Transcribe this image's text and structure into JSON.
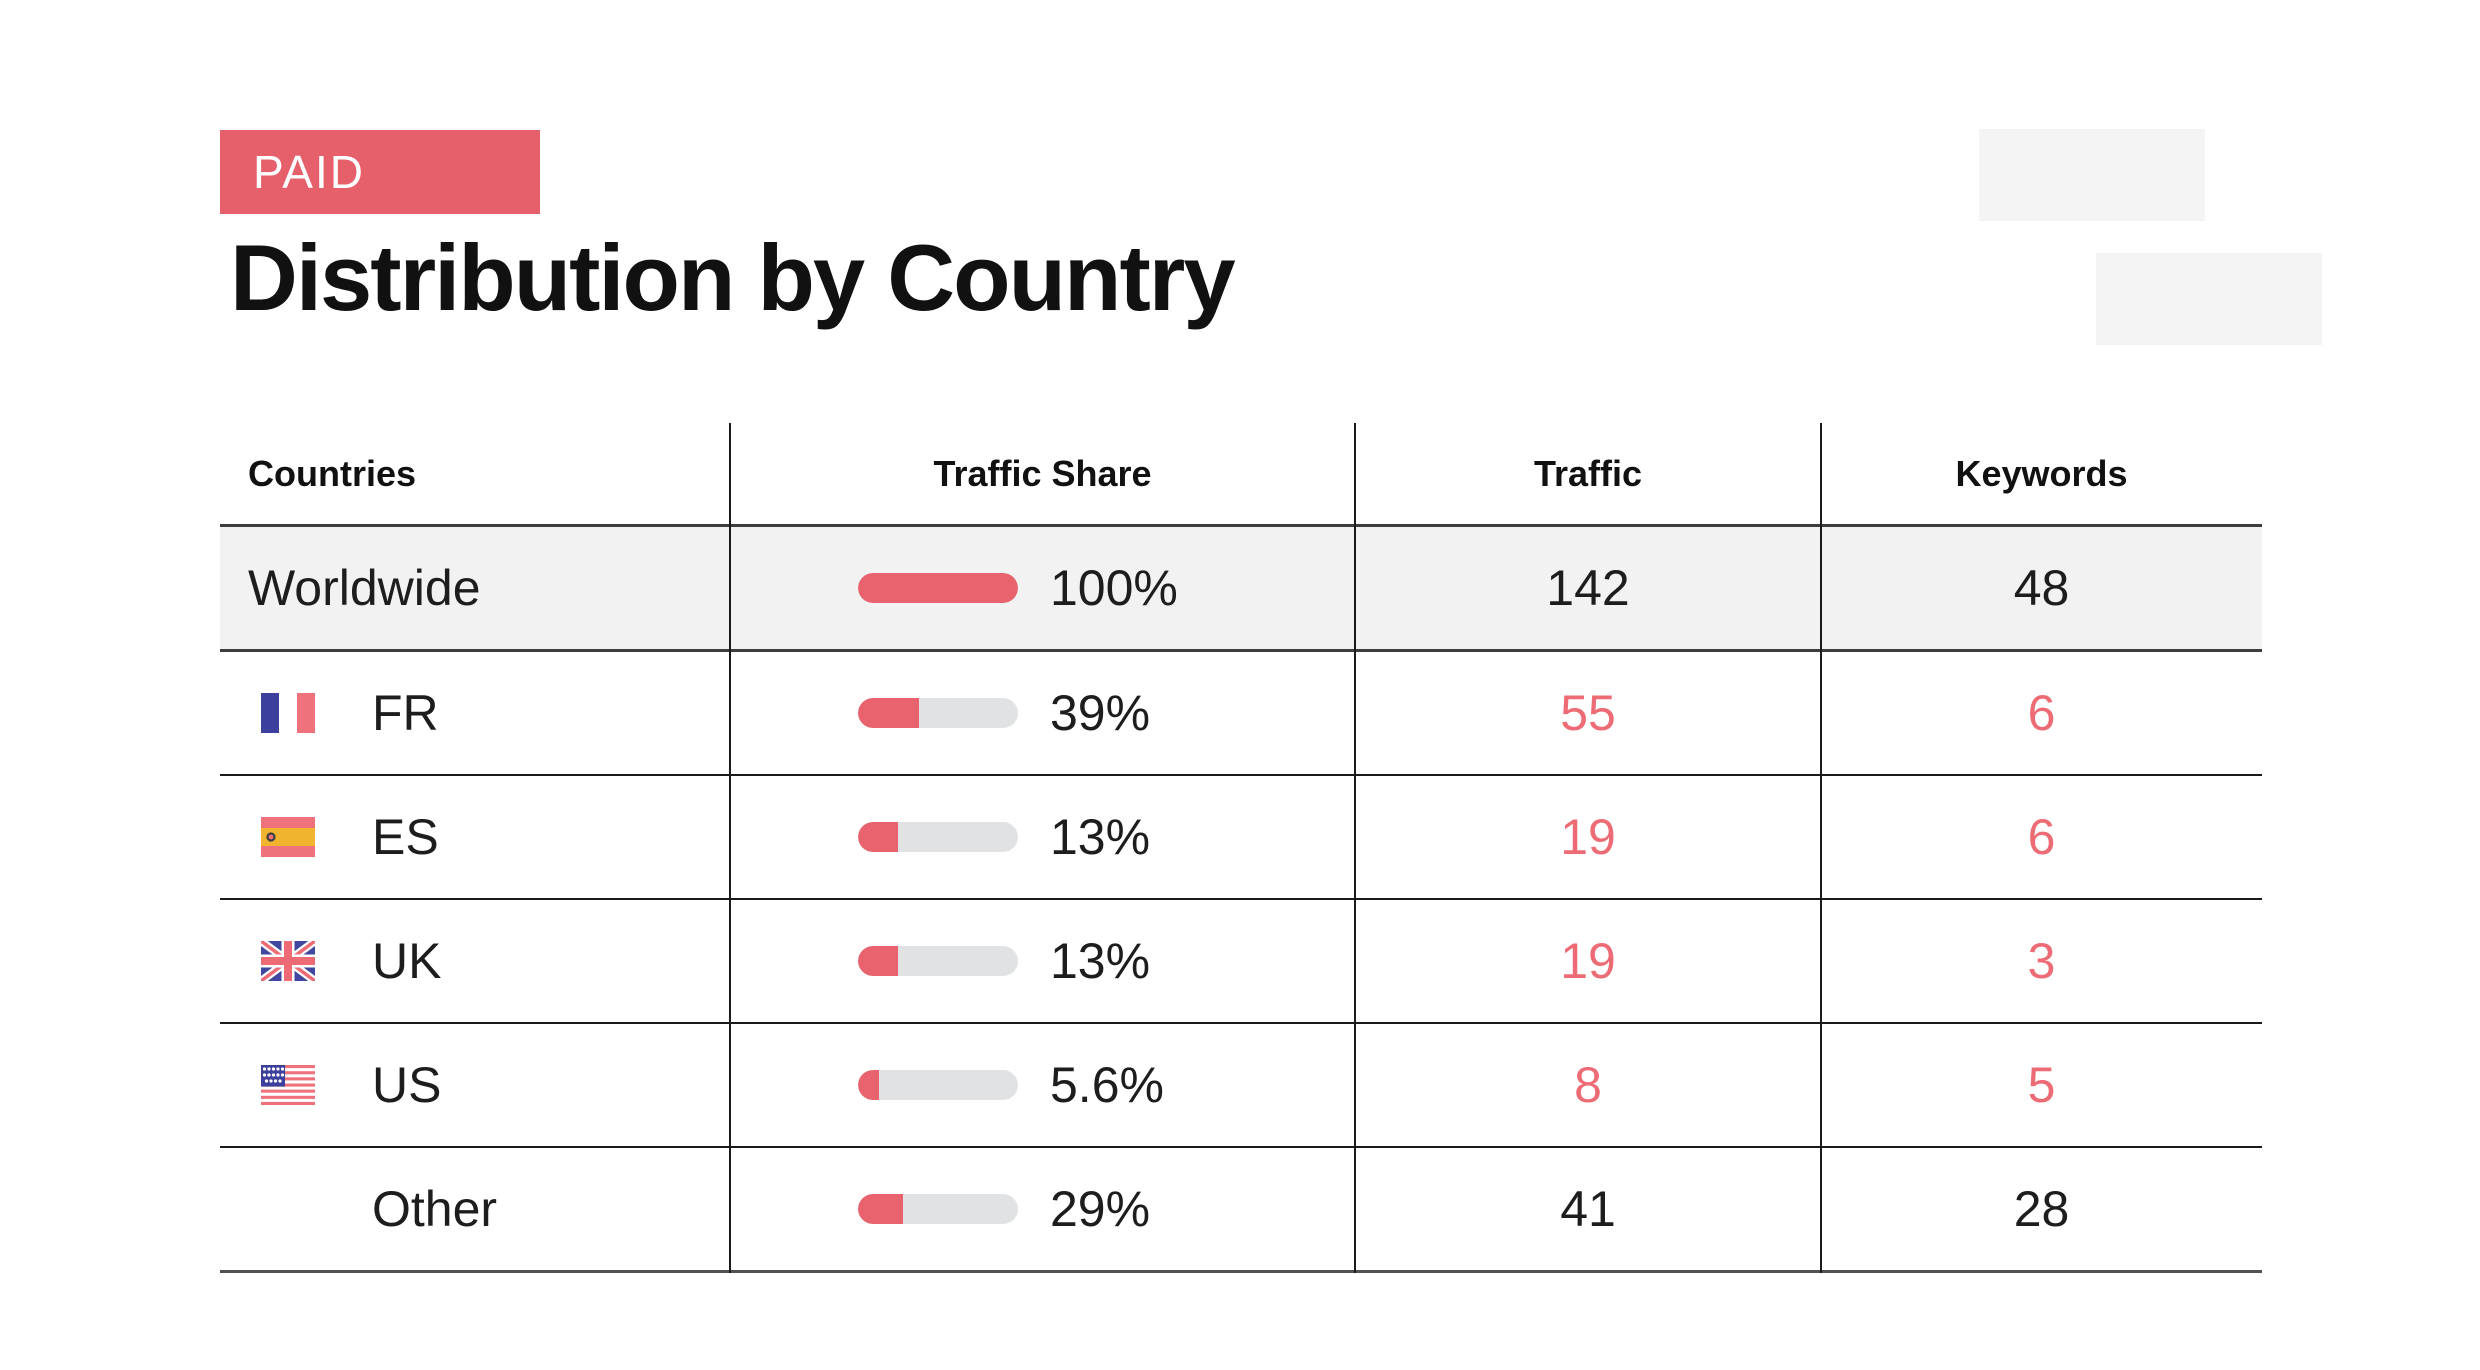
{
  "badge": {
    "label": "PAID",
    "bg": "#e5606b",
    "text_color": "#ffffff"
  },
  "title": "Distribution by Country",
  "table": {
    "columns": [
      {
        "label": "Countries"
      },
      {
        "label": "Traffic Share"
      },
      {
        "label": "Traffic"
      },
      {
        "label": "Keywords"
      }
    ],
    "colors": {
      "accent": "#e5606b",
      "bar_fill": "#e8636e",
      "bar_track": "#e0e2e4",
      "value_red": "#ed6b74",
      "value_black": "#1d1d1d",
      "highlight_row_bg": "#f2f2f2"
    },
    "rows": [
      {
        "country": "Worldwide",
        "flag": "",
        "indent": false,
        "highlight": true,
        "share": "100%",
        "bar_fill_pct": 100,
        "traffic": "142",
        "keywords": "48",
        "value_color": "black"
      },
      {
        "country": "FR",
        "flag": "fr",
        "indent": true,
        "highlight": false,
        "share": "39%",
        "bar_fill_pct": 38,
        "traffic": "55",
        "keywords": "6",
        "value_color": "red"
      },
      {
        "country": "ES",
        "flag": "es",
        "indent": true,
        "highlight": false,
        "share": "13%",
        "bar_fill_pct": 25,
        "traffic": "19",
        "keywords": "6",
        "value_color": "red"
      },
      {
        "country": "UK",
        "flag": "uk",
        "indent": true,
        "highlight": false,
        "share": "13%",
        "bar_fill_pct": 25,
        "traffic": "19",
        "keywords": "3",
        "value_color": "red"
      },
      {
        "country": "US",
        "flag": "us",
        "indent": true,
        "highlight": false,
        "share": "5.6%",
        "bar_fill_pct": 13,
        "traffic": "8",
        "keywords": "5",
        "value_color": "red"
      },
      {
        "country": "Other",
        "flag": "",
        "indent": true,
        "highlight": false,
        "share": "29%",
        "bar_fill_pct": 28,
        "traffic": "41",
        "keywords": "28",
        "value_color": "black"
      }
    ]
  },
  "chart_data": {
    "type": "table",
    "title": "Distribution by Country",
    "badge": "PAID",
    "columns": [
      "Countries",
      "Traffic Share",
      "Traffic",
      "Keywords"
    ],
    "rows": [
      {
        "country": "Worldwide",
        "traffic_share_pct": 100,
        "traffic": 142,
        "keywords": 48
      },
      {
        "country": "FR",
        "traffic_share_pct": 39,
        "traffic": 55,
        "keywords": 6
      },
      {
        "country": "ES",
        "traffic_share_pct": 13,
        "traffic": 19,
        "keywords": 6
      },
      {
        "country": "UK",
        "traffic_share_pct": 13,
        "traffic": 19,
        "keywords": 3
      },
      {
        "country": "US",
        "traffic_share_pct": 5.6,
        "traffic": 8,
        "keywords": 5
      },
      {
        "country": "Other",
        "traffic_share_pct": 29,
        "traffic": 41,
        "keywords": 28
      }
    ]
  }
}
